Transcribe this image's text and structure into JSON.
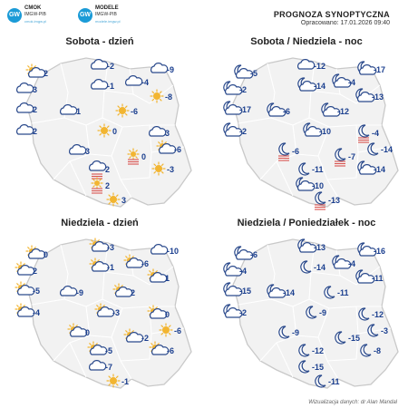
{
  "logos": [
    {
      "badge": "GW",
      "line1": "CMOK",
      "line2": "IMGW-PIB",
      "line3": "cmok.imgw.pl"
    },
    {
      "badge": "GW",
      "line1": "MODELE",
      "line2": "IMGW-PIB",
      "line3": "modele.imgw.pl"
    }
  ],
  "header": {
    "title": "PROGNOZA SYNOPTYCZNA",
    "subtitle": "Opracowano: 17.01.2026 09:40"
  },
  "footer": "Wizualizacja danych: dr Alan Mandal",
  "colors": {
    "temp_text": "#1b3f8f",
    "map_fill": "#f2f2f2",
    "map_stroke": "#c9c9c9",
    "sun": "#f2b531",
    "cloud_stroke": "#2b4a8c",
    "fog": "#d9534f"
  },
  "panels": [
    {
      "title": "Sobota - dzień",
      "points": [
        {
          "icon": "partly-cloudy-day-icon",
          "temp": "2"
        },
        {
          "icon": "cloudy-icon",
          "temp": "-2"
        },
        {
          "icon": "cloudy-icon",
          "temp": "-9"
        },
        {
          "icon": "cloudy-icon",
          "temp": "3"
        },
        {
          "icon": "cloudy-icon",
          "temp": "-1"
        },
        {
          "icon": "cloudy-icon",
          "temp": "-4"
        },
        {
          "icon": "sunny-icon",
          "temp": "-8"
        },
        {
          "icon": "cloudy-icon",
          "temp": "2"
        },
        {
          "icon": "cloudy-icon",
          "temp": "1"
        },
        {
          "icon": "sunny-icon",
          "temp": "-6"
        },
        {
          "icon": "cloudy-icon",
          "temp": "2"
        },
        {
          "icon": "sunny-icon",
          "temp": "0"
        },
        {
          "icon": "cloudy-icon",
          "temp": "3"
        },
        {
          "icon": "partly-cloudy-day-icon",
          "temp": "-6"
        },
        {
          "icon": "cloudy-icon",
          "temp": "3"
        },
        {
          "icon": "fog-cloud-icon",
          "temp": "2"
        },
        {
          "icon": "fog-icon",
          "temp": "0"
        },
        {
          "icon": "sunny-icon",
          "temp": "-3"
        },
        {
          "icon": "fog-icon",
          "temp": "2"
        },
        {
          "icon": "sunny-icon",
          "temp": "3"
        }
      ]
    },
    {
      "title": "Sobota / Niedziela - noc",
      "points": [
        {
          "icon": "partly-cloudy-night-icon",
          "temp": "-5"
        },
        {
          "icon": "cloudy-icon",
          "temp": "-12"
        },
        {
          "icon": "partly-cloudy-night-icon",
          "temp": "-17"
        },
        {
          "icon": "partly-cloudy-night-icon",
          "temp": "-2"
        },
        {
          "icon": "partly-cloudy-night-icon",
          "temp": "-14"
        },
        {
          "icon": "partly-cloudy-night-icon",
          "temp": "-4"
        },
        {
          "icon": "partly-cloudy-night-icon",
          "temp": "-13"
        },
        {
          "icon": "partly-cloudy-night-icon",
          "temp": "-17"
        },
        {
          "icon": "partly-cloudy-night-icon",
          "temp": "-6"
        },
        {
          "icon": "partly-cloudy-night-icon",
          "temp": "-12"
        },
        {
          "icon": "partly-cloudy-night-icon",
          "temp": "-2"
        },
        {
          "icon": "partly-cloudy-night-icon",
          "temp": "-10"
        },
        {
          "icon": "fog-night-icon",
          "temp": "-4"
        },
        {
          "icon": "moon-icon",
          "temp": "-14"
        },
        {
          "icon": "fog-night-icon",
          "temp": "-6"
        },
        {
          "icon": "moon-icon",
          "temp": "-11"
        },
        {
          "icon": "fog-night-icon",
          "temp": "-7"
        },
        {
          "icon": "partly-cloudy-night-icon",
          "temp": "-14"
        },
        {
          "icon": "partly-cloudy-night-icon",
          "temp": "-10"
        },
        {
          "icon": "fog-night-icon",
          "temp": "-13"
        }
      ]
    },
    {
      "title": "Niedziela - dzień",
      "points": [
        {
          "icon": "partly-cloudy-day-icon",
          "temp": "0"
        },
        {
          "icon": "partly-cloudy-day-icon",
          "temp": "-3"
        },
        {
          "icon": "cloudy-icon",
          "temp": "-10"
        },
        {
          "icon": "partly-cloudy-day-icon",
          "temp": "2"
        },
        {
          "icon": "partly-cloudy-day-icon",
          "temp": "-1"
        },
        {
          "icon": "partly-cloudy-day-icon",
          "temp": "-6"
        },
        {
          "icon": "partly-cloudy-day-icon",
          "temp": "1"
        },
        {
          "icon": "partly-cloudy-day-icon",
          "temp": "-5"
        },
        {
          "icon": "cloudy-icon",
          "temp": "-9"
        },
        {
          "icon": "partly-cloudy-day-icon",
          "temp": "2"
        },
        {
          "icon": "partly-cloudy-day-icon",
          "temp": "-4"
        },
        {
          "icon": "partly-cloudy-day-icon",
          "temp": "-3"
        },
        {
          "icon": "partly-cloudy-day-icon",
          "temp": "0"
        },
        {
          "icon": "sunny-icon",
          "temp": "-6"
        },
        {
          "icon": "partly-cloudy-day-icon",
          "temp": "0"
        },
        {
          "icon": "partly-cloudy-day-icon",
          "temp": "-5"
        },
        {
          "icon": "partly-cloudy-day-icon",
          "temp": "-2"
        },
        {
          "icon": "partly-cloudy-day-icon",
          "temp": "-6"
        },
        {
          "icon": "cloudy-icon",
          "temp": "-7"
        },
        {
          "icon": "sunny-icon",
          "temp": "-1"
        }
      ]
    },
    {
      "title": "Niedziela / Poniedziałek - noc",
      "points": [
        {
          "icon": "partly-cloudy-night-icon",
          "temp": "-6"
        },
        {
          "icon": "partly-cloudy-night-icon",
          "temp": "-13"
        },
        {
          "icon": "partly-cloudy-night-icon",
          "temp": "-16"
        },
        {
          "icon": "partly-cloudy-night-icon",
          "temp": "-4"
        },
        {
          "icon": "moon-icon",
          "temp": "-14"
        },
        {
          "icon": "partly-cloudy-night-icon",
          "temp": "-4"
        },
        {
          "icon": "partly-cloudy-night-icon",
          "temp": "-11"
        },
        {
          "icon": "partly-cloudy-night-icon",
          "temp": "-15"
        },
        {
          "icon": "partly-cloudy-night-icon",
          "temp": "-14"
        },
        {
          "icon": "moon-icon",
          "temp": "-11"
        },
        {
          "icon": "partly-cloudy-night-icon",
          "temp": "-2"
        },
        {
          "icon": "moon-icon",
          "temp": "-9"
        },
        {
          "icon": "moon-icon",
          "temp": "-12"
        },
        {
          "icon": "moon-icon",
          "temp": "-3"
        },
        {
          "icon": "moon-icon",
          "temp": "-9"
        },
        {
          "icon": "moon-icon",
          "temp": "-12"
        },
        {
          "icon": "moon-icon",
          "temp": "-15"
        },
        {
          "icon": "moon-icon",
          "temp": "-8"
        },
        {
          "icon": "moon-icon",
          "temp": "-15"
        },
        {
          "icon": "moon-icon",
          "temp": "-11"
        }
      ]
    }
  ]
}
